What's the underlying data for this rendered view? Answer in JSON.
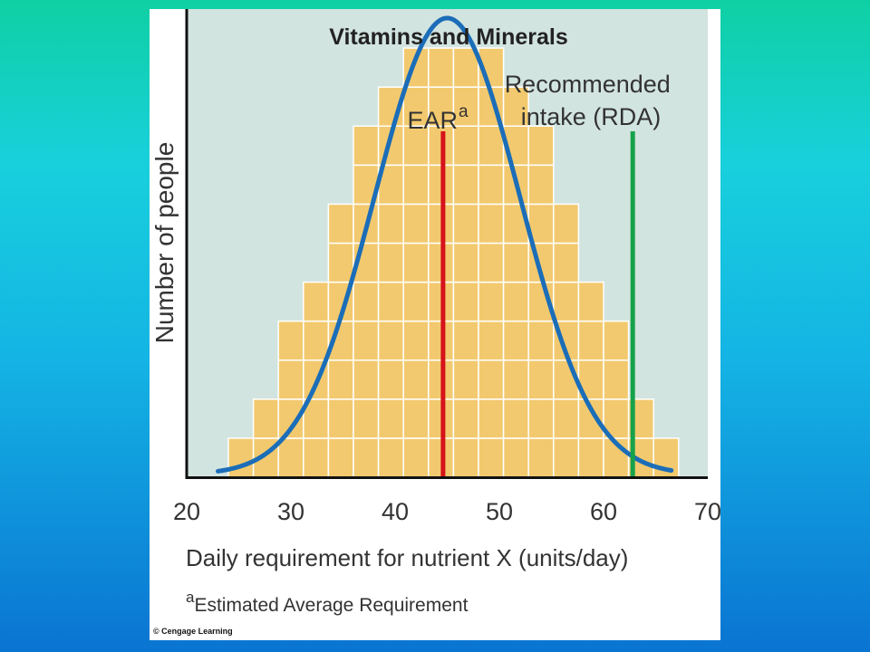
{
  "chart_data": {
    "type": "bar",
    "title": "Vitamins and Minerals",
    "xlabel": "Daily requirement for nutrient X (units/day)",
    "ylabel": "Number of people",
    "xlim": [
      20,
      70
    ],
    "ylim": [
      0,
      12
    ],
    "x_ticks": [
      "20",
      "30",
      "40",
      "50",
      "60",
      "70"
    ],
    "grid": false,
    "bin_width": 2.4,
    "bins": [
      {
        "x0": 24.0,
        "x1": 26.4,
        "count": 1
      },
      {
        "x0": 26.4,
        "x1": 28.8,
        "count": 2
      },
      {
        "x0": 28.8,
        "x1": 31.2,
        "count": 4
      },
      {
        "x0": 31.2,
        "x1": 33.6,
        "count": 5
      },
      {
        "x0": 33.6,
        "x1": 36.0,
        "count": 7
      },
      {
        "x0": 36.0,
        "x1": 38.4,
        "count": 9
      },
      {
        "x0": 38.4,
        "x1": 40.8,
        "count": 10
      },
      {
        "x0": 40.8,
        "x1": 43.2,
        "count": 11
      },
      {
        "x0": 43.2,
        "x1": 45.6,
        "count": 11
      },
      {
        "x0": 45.6,
        "x1": 48.0,
        "count": 11
      },
      {
        "x0": 48.0,
        "x1": 50.4,
        "count": 11
      },
      {
        "x0": 50.4,
        "x1": 52.8,
        "count": 10
      },
      {
        "x0": 52.8,
        "x1": 55.2,
        "count": 9
      },
      {
        "x0": 55.2,
        "x1": 57.6,
        "count": 7
      },
      {
        "x0": 57.6,
        "x1": 60.0,
        "count": 5
      },
      {
        "x0": 60.0,
        "x1": 62.4,
        "count": 4
      },
      {
        "x0": 62.4,
        "x1": 64.8,
        "count": 2
      },
      {
        "x0": 64.8,
        "x1": 67.2,
        "count": 1
      }
    ],
    "curve": {
      "mean": 45,
      "sd": 7,
      "peak": 11.7,
      "x_start": 23,
      "x_end": 66.5
    },
    "reference_lines": [
      {
        "label": "EAR",
        "superscript": "a",
        "x": 44.6,
        "color": "#d6121a"
      },
      {
        "label_lines": [
          "Recommended",
          "intake (RDA)"
        ],
        "x": 62.8,
        "color": "#16a24a"
      }
    ],
    "footnote": {
      "marker": "a",
      "text": "Estimated Average Requirement"
    },
    "credit": "© Cengage Learning",
    "colors": {
      "plot_bg": "#d2e4e0",
      "bar_fill": "#f2c96e",
      "bar_edge": "#ffffff",
      "curve": "#1b6db8",
      "axis": "#111111",
      "text": "#333333"
    }
  }
}
